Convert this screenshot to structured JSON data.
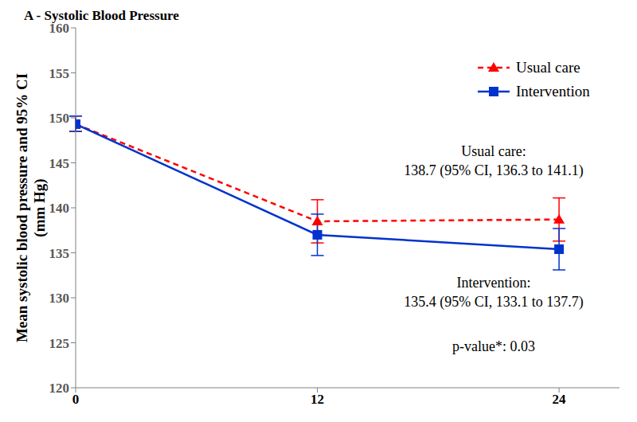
{
  "chart_data": {
    "type": "line",
    "title": "A - Systolic Blood Pressure",
    "y_label": [
      "Mean systolic blood pressure and 95% CI",
      "(mm Hg)"
    ],
    "x": [
      0,
      12,
      24
    ],
    "xlim": [
      0,
      27
    ],
    "xticks": [
      0,
      12,
      24
    ],
    "ylim": [
      120,
      160
    ],
    "yticks": [
      120,
      125,
      130,
      135,
      140,
      145,
      150,
      155,
      160
    ],
    "grid": false,
    "legend": "upper right",
    "series": [
      {
        "name": "Usual care",
        "color": "#ff0000",
        "marker": "triangle",
        "line_style": "dashed",
        "values": [
          149.3,
          138.5,
          138.7
        ],
        "ci_low": [
          148.5,
          136.1,
          136.3
        ],
        "ci_high": [
          150.2,
          140.9,
          141.1
        ]
      },
      {
        "name": "Intervention",
        "color": "#0033cc",
        "marker": "square",
        "line_style": "solid",
        "values": [
          149.3,
          137.0,
          135.4
        ],
        "ci_low": [
          148.5,
          134.7,
          133.1
        ],
        "ci_high": [
          150.2,
          139.3,
          137.7
        ]
      }
    ],
    "annotations": [
      [
        "Usual care:",
        "138.7 (95% CI, 136.3 to 141.1)"
      ],
      [
        "Intervention:",
        "135.4 (95% CI, 133.1 to 137.7)"
      ],
      [
        "p-value*: 0.03"
      ]
    ]
  }
}
